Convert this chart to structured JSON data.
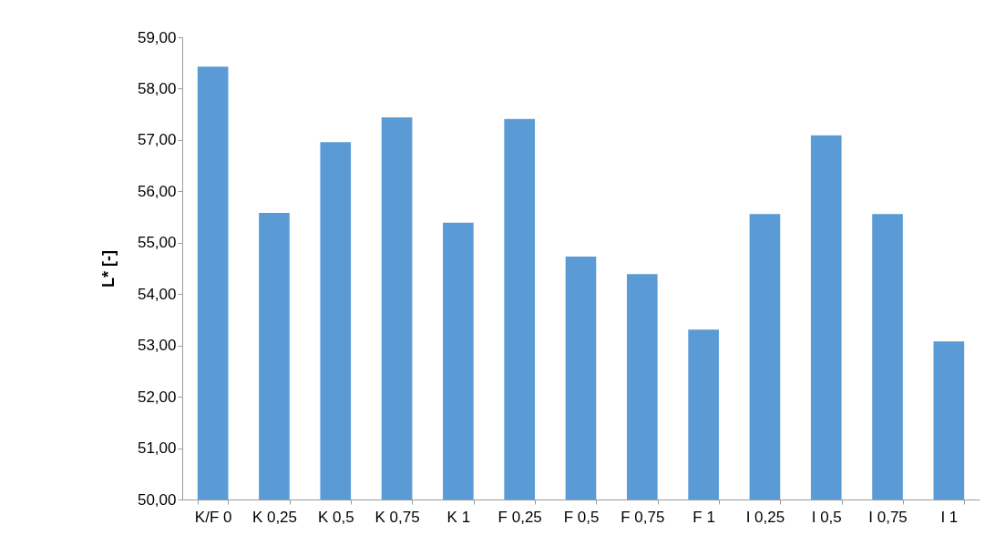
{
  "chart_data": {
    "type": "bar",
    "ylabel": "L* [-]",
    "categories": [
      "K/F 0",
      "K 0,25",
      "K 0,5",
      "K 0,75",
      "K 1",
      "F 0,25",
      "F 0,5",
      "F 0,75",
      "F 1",
      "I 0,25",
      "I 0,5",
      "I 0,75",
      "I 1"
    ],
    "values": [
      58.43,
      55.58,
      56.96,
      57.44,
      55.39,
      57.41,
      54.73,
      54.39,
      53.31,
      55.56,
      57.09,
      55.56,
      53.08
    ],
    "color": "#5b9bd5",
    "ylim": [
      50,
      59
    ],
    "yticks": [
      {
        "value": 50,
        "label": "50,00"
      },
      {
        "value": 51,
        "label": "51,00"
      },
      {
        "value": 52,
        "label": "52,00"
      },
      {
        "value": 53,
        "label": "53,00"
      },
      {
        "value": 54,
        "label": "54,00"
      },
      {
        "value": 55,
        "label": "55,00"
      },
      {
        "value": 56,
        "label": "56,00"
      },
      {
        "value": 57,
        "label": "57,00"
      },
      {
        "value": 58,
        "label": "58,00"
      },
      {
        "value": 59,
        "label": "59,00"
      }
    ],
    "grid": false
  }
}
